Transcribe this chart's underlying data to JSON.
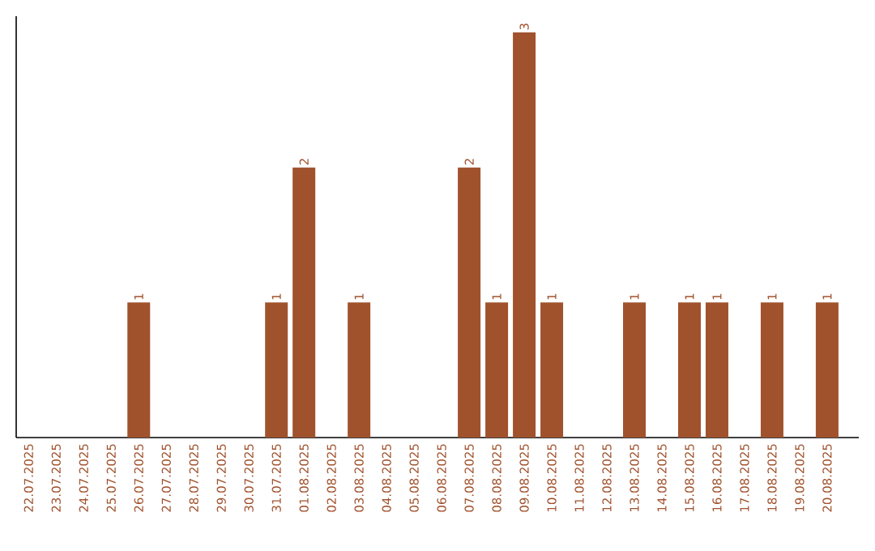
{
  "chart_data": {
    "type": "bar",
    "categories": [
      "22.07.2025",
      "23.07.2025",
      "24.07.2025",
      "25.07.2025",
      "26.07.2025",
      "27.07.2025",
      "28.07.2025",
      "29.07.2025",
      "30.07.2025",
      "31.07.2025",
      "01.08.2025",
      "02.08.2025",
      "03.08.2025",
      "04.08.2025",
      "05.08.2025",
      "06.08.2025",
      "07.08.2025",
      "08.08.2025",
      "09.08.2025",
      "10.08.2025",
      "11.08.2025",
      "12.08.2025",
      "13.08.2025",
      "14.08.2025",
      "15.08.2025",
      "16.08.2025",
      "17.08.2025",
      "18.08.2025",
      "19.08.2025",
      "20.08.2025"
    ],
    "values": [
      0,
      0,
      0,
      0,
      1,
      0,
      0,
      0,
      0,
      1,
      2,
      0,
      1,
      0,
      0,
      0,
      2,
      1,
      3,
      1,
      0,
      0,
      1,
      0,
      1,
      1,
      0,
      1,
      0,
      1
    ],
    "value_labels": [
      null,
      null,
      null,
      null,
      "1",
      null,
      null,
      null,
      null,
      "1",
      "2",
      null,
      "1",
      null,
      null,
      null,
      "2",
      "1",
      "3",
      "1",
      null,
      null,
      "1",
      null,
      "1",
      "1",
      null,
      "1",
      null,
      "1"
    ],
    "color": "#a0522d",
    "tick_labels": "x"
  }
}
